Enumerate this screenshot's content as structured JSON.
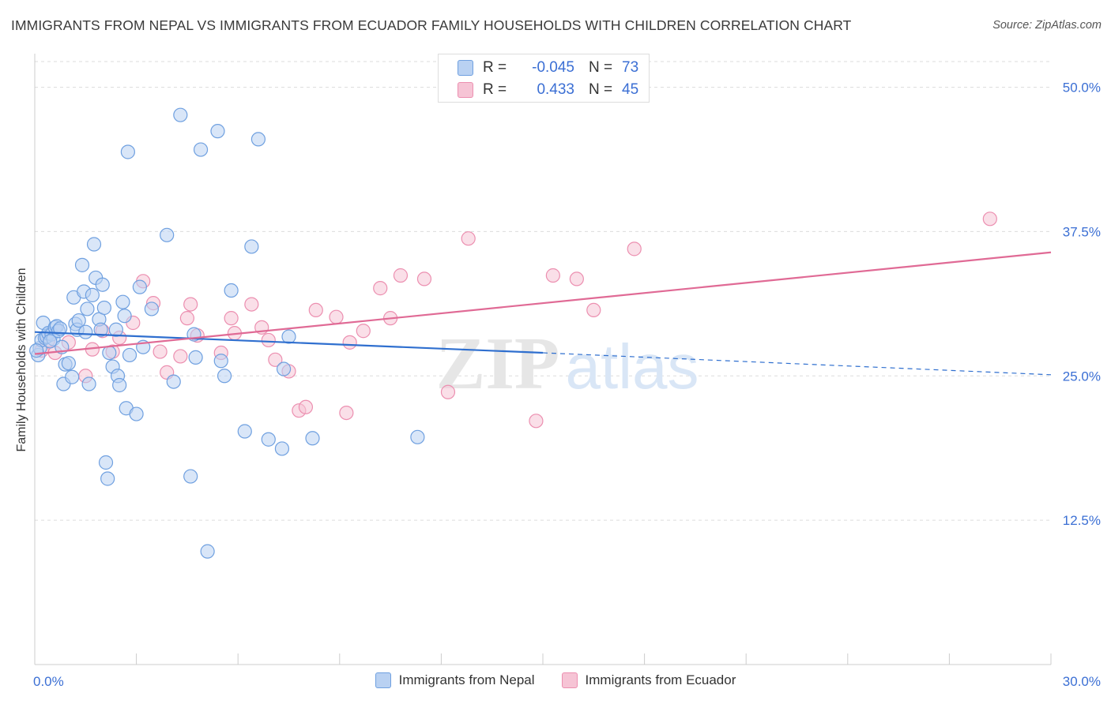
{
  "title": "IMMIGRANTS FROM NEPAL VS IMMIGRANTS FROM ECUADOR FAMILY HOUSEHOLDS WITH CHILDREN CORRELATION CHART",
  "source": "Source: ZipAtlas.com",
  "watermark": {
    "zip": "ZIP",
    "atlas": "atlas"
  },
  "legend_stats": [
    {
      "r_label": "R =",
      "r_value": "-0.045",
      "n_label": "N =",
      "n_value": "73",
      "color": "#6fa0e0"
    },
    {
      "r_label": "R =",
      "r_value": "0.433",
      "n_label": "N =",
      "n_value": "45",
      "color": "#ec8fb0"
    }
  ],
  "chart_data": {
    "type": "scatter",
    "title": "IMMIGRANTS FROM NEPAL VS IMMIGRANTS FROM ECUADOR FAMILY HOUSEHOLDS WITH CHILDREN CORRELATION CHART",
    "xlabel": "",
    "ylabel": "Family Households with Children",
    "xlim": [
      0,
      30
    ],
    "ylim": [
      0,
      52.5
    ],
    "x_ticks": [
      "0.0%",
      "30.0%"
    ],
    "y_ticks": [
      {
        "value": 12.5,
        "label": "12.5%"
      },
      {
        "value": 25.0,
        "label": "25.0%"
      },
      {
        "value": 37.5,
        "label": "37.5%"
      },
      {
        "value": 50.0,
        "label": "50.0%"
      }
    ],
    "grid": true,
    "legend_position": "bottom",
    "series": [
      {
        "name": "Immigrants from Nepal",
        "color": "#6fa0e0",
        "fill": "#b9d1f2",
        "trend": {
          "x": [
            0,
            15
          ],
          "y": [
            28.8,
            27.0
          ],
          "dashed_to": [
            30,
            25.1
          ]
        },
        "points": [
          [
            0.1,
            26.8
          ],
          [
            0.15,
            27.4
          ],
          [
            0.2,
            28.1
          ],
          [
            0.25,
            29.6
          ],
          [
            0.3,
            28.3
          ],
          [
            0.35,
            28.4
          ],
          [
            0.4,
            28.7
          ],
          [
            0.5,
            28.6
          ],
          [
            0.55,
            28.2
          ],
          [
            0.6,
            29.2
          ],
          [
            0.65,
            29.3
          ],
          [
            0.7,
            28.9
          ],
          [
            0.8,
            27.5
          ],
          [
            0.85,
            24.3
          ],
          [
            0.9,
            26.0
          ],
          [
            1.0,
            26.1
          ],
          [
            1.1,
            24.9
          ],
          [
            1.15,
            31.8
          ],
          [
            1.2,
            29.5
          ],
          [
            1.25,
            29.0
          ],
          [
            1.3,
            29.8
          ],
          [
            1.4,
            34.6
          ],
          [
            1.45,
            32.3
          ],
          [
            1.5,
            28.8
          ],
          [
            1.55,
            30.8
          ],
          [
            1.6,
            24.3
          ],
          [
            1.7,
            32.0
          ],
          [
            1.75,
            36.4
          ],
          [
            1.8,
            33.5
          ],
          [
            1.9,
            29.9
          ],
          [
            1.95,
            29.0
          ],
          [
            2.0,
            32.9
          ],
          [
            2.05,
            30.9
          ],
          [
            2.1,
            17.5
          ],
          [
            2.15,
            16.1
          ],
          [
            2.2,
            27.0
          ],
          [
            2.3,
            25.8
          ],
          [
            2.4,
            29.0
          ],
          [
            2.45,
            25.0
          ],
          [
            2.5,
            24.2
          ],
          [
            2.6,
            31.4
          ],
          [
            2.65,
            30.2
          ],
          [
            2.7,
            22.2
          ],
          [
            2.75,
            44.4
          ],
          [
            2.8,
            26.8
          ],
          [
            3.0,
            21.7
          ],
          [
            3.1,
            32.7
          ],
          [
            3.2,
            27.5
          ],
          [
            3.45,
            30.8
          ],
          [
            3.9,
            37.2
          ],
          [
            4.1,
            24.5
          ],
          [
            4.3,
            47.6
          ],
          [
            4.6,
            16.3
          ],
          [
            4.7,
            28.6
          ],
          [
            4.75,
            26.6
          ],
          [
            4.9,
            44.6
          ],
          [
            5.1,
            9.8
          ],
          [
            5.4,
            46.2
          ],
          [
            5.5,
            26.3
          ],
          [
            5.6,
            25.0
          ],
          [
            5.8,
            32.4
          ],
          [
            6.2,
            20.2
          ],
          [
            6.4,
            36.2
          ],
          [
            6.6,
            45.5
          ],
          [
            6.9,
            19.5
          ],
          [
            7.3,
            18.7
          ],
          [
            7.35,
            25.6
          ],
          [
            7.5,
            28.4
          ],
          [
            8.2,
            19.6
          ],
          [
            11.3,
            19.7
          ],
          [
            0.05,
            27.2
          ],
          [
            0.45,
            28.0
          ],
          [
            0.75,
            29.1
          ]
        ]
      },
      {
        "name": "Immigrants from Ecuador",
        "color": "#ec8fb0",
        "fill": "#f6c4d5",
        "trend": {
          "x": [
            0,
            30
          ],
          "y": [
            26.9,
            35.7
          ]
        },
        "points": [
          [
            0.2,
            27.2
          ],
          [
            0.4,
            28.1
          ],
          [
            0.6,
            27.0
          ],
          [
            1.0,
            27.9
          ],
          [
            1.5,
            25.0
          ],
          [
            1.7,
            27.3
          ],
          [
            2.0,
            28.9
          ],
          [
            2.3,
            27.1
          ],
          [
            2.5,
            28.3
          ],
          [
            2.9,
            29.6
          ],
          [
            3.2,
            33.2
          ],
          [
            3.5,
            31.3
          ],
          [
            3.7,
            27.1
          ],
          [
            3.9,
            25.3
          ],
          [
            4.3,
            26.7
          ],
          [
            4.5,
            30.0
          ],
          [
            4.6,
            31.2
          ],
          [
            4.8,
            28.5
          ],
          [
            5.5,
            27.0
          ],
          [
            5.8,
            30.0
          ],
          [
            5.9,
            28.7
          ],
          [
            6.4,
            31.2
          ],
          [
            6.7,
            29.2
          ],
          [
            6.9,
            28.1
          ],
          [
            7.1,
            26.4
          ],
          [
            7.5,
            25.4
          ],
          [
            7.8,
            22.0
          ],
          [
            8.0,
            22.3
          ],
          [
            8.3,
            30.7
          ],
          [
            8.9,
            30.1
          ],
          [
            9.2,
            21.8
          ],
          [
            9.3,
            27.9
          ],
          [
            9.7,
            28.9
          ],
          [
            10.2,
            32.6
          ],
          [
            10.5,
            30.0
          ],
          [
            10.8,
            33.7
          ],
          [
            11.5,
            33.4
          ],
          [
            12.2,
            23.6
          ],
          [
            12.8,
            36.9
          ],
          [
            14.8,
            21.1
          ],
          [
            15.3,
            33.7
          ],
          [
            16.0,
            33.4
          ],
          [
            16.5,
            30.7
          ],
          [
            17.7,
            36.0
          ],
          [
            28.2,
            38.6
          ]
        ]
      }
    ]
  }
}
